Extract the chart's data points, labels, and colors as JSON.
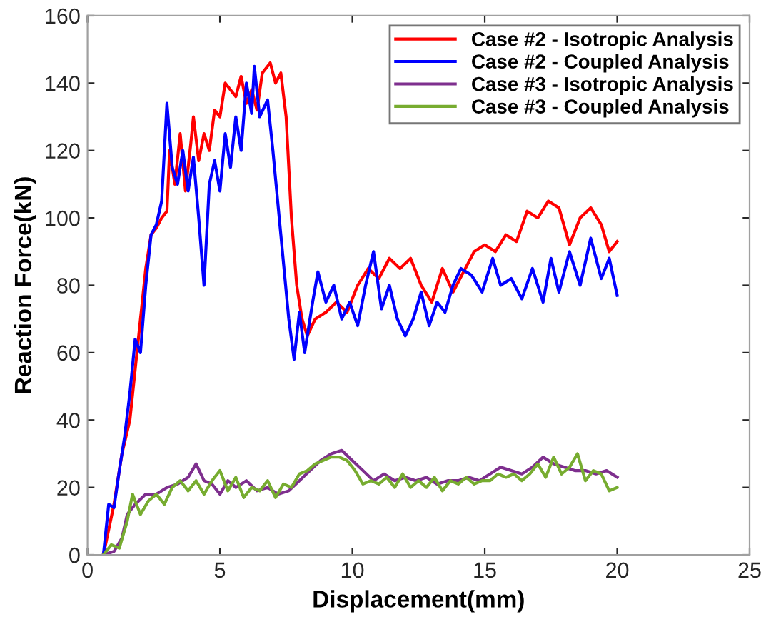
{
  "chart_data": {
    "type": "line",
    "xlabel": "Displacement(mm)",
    "ylabel": "Reaction Force(kN)",
    "xlim": [
      0,
      25
    ],
    "ylim": [
      0,
      160
    ],
    "xticks": [
      0,
      5,
      10,
      15,
      20,
      25
    ],
    "yticks": [
      0,
      20,
      40,
      60,
      80,
      100,
      120,
      140,
      160
    ],
    "grid": false,
    "legend": "top right",
    "line_style": "solid",
    "marker": "none",
    "series": [
      {
        "name": "Case #2 - Isotropic Analysis",
        "color": "#ff0000",
        "x": [
          0.6,
          1.0,
          1.3,
          1.6,
          1.8,
          2.0,
          2.2,
          2.4,
          2.6,
          2.8,
          3.0,
          3.1,
          3.3,
          3.5,
          3.7,
          3.9,
          4.0,
          4.2,
          4.4,
          4.6,
          4.8,
          5.0,
          5.2,
          5.4,
          5.6,
          5.8,
          6.0,
          6.2,
          6.4,
          6.6,
          6.9,
          7.1,
          7.3,
          7.5,
          7.7,
          7.9,
          8.1,
          8.3,
          8.6,
          9.0,
          9.4,
          9.8,
          10.2,
          10.6,
          11.0,
          11.4,
          11.8,
          12.2,
          12.6,
          13.0,
          13.4,
          13.8,
          14.2,
          14.6,
          15.0,
          15.4,
          15.8,
          16.2,
          16.6,
          17.0,
          17.4,
          17.8,
          18.2,
          18.6,
          19.0,
          19.4,
          19.7,
          20.0
        ],
        "values": [
          0,
          15,
          30,
          40,
          55,
          70,
          85,
          95,
          97,
          100,
          102,
          120,
          110,
          125,
          108,
          122,
          130,
          117,
          125,
          120,
          132,
          130,
          140,
          138,
          136,
          142,
          134,
          138,
          132,
          143,
          146,
          140,
          143,
          130,
          100,
          80,
          70,
          65,
          70,
          72,
          75,
          72,
          80,
          85,
          82,
          88,
          85,
          88,
          80,
          75,
          85,
          78,
          84,
          90,
          92,
          90,
          95,
          93,
          102,
          100,
          105,
          103,
          92,
          100,
          103,
          98,
          90,
          93
        ]
      },
      {
        "name": "Case #2 - Coupled Analysis",
        "color": "#0000ff",
        "x": [
          0.6,
          0.8,
          1.0,
          1.2,
          1.4,
          1.6,
          1.8,
          2.0,
          2.2,
          2.4,
          2.6,
          2.8,
          3.0,
          3.2,
          3.4,
          3.6,
          3.8,
          4.0,
          4.2,
          4.4,
          4.6,
          4.8,
          5.0,
          5.2,
          5.4,
          5.6,
          5.8,
          6.0,
          6.2,
          6.3,
          6.5,
          6.8,
          7.0,
          7.3,
          7.6,
          7.8,
          8.0,
          8.2,
          8.5,
          8.7,
          9.0,
          9.3,
          9.6,
          9.9,
          10.2,
          10.5,
          10.8,
          11.1,
          11.4,
          11.7,
          12.0,
          12.3,
          12.6,
          12.9,
          13.2,
          13.5,
          13.8,
          14.1,
          14.5,
          14.9,
          15.3,
          15.6,
          16.0,
          16.4,
          16.8,
          17.2,
          17.5,
          17.8,
          18.2,
          18.6,
          19.0,
          19.4,
          19.7,
          20.0
        ],
        "values": [
          0,
          15,
          14,
          25,
          35,
          48,
          64,
          60,
          80,
          95,
          98,
          105,
          134,
          115,
          110,
          120,
          108,
          118,
          100,
          80,
          110,
          117,
          108,
          125,
          115,
          130,
          120,
          140,
          131,
          145,
          130,
          135,
          120,
          95,
          70,
          58,
          72,
          60,
          75,
          84,
          75,
          80,
          70,
          75,
          68,
          80,
          90,
          73,
          80,
          70,
          65,
          70,
          78,
          68,
          75,
          72,
          80,
          85,
          83,
          78,
          88,
          80,
          82,
          76,
          85,
          75,
          88,
          78,
          90,
          80,
          94,
          82,
          88,
          77
        ]
      },
      {
        "name": "Case #3 - Isotropic Analysis",
        "color": "#7e2f8e",
        "x": [
          0.6,
          1.0,
          1.3,
          1.5,
          1.8,
          2.2,
          2.6,
          3.0,
          3.4,
          3.8,
          4.1,
          4.4,
          4.7,
          5.0,
          5.3,
          5.6,
          6.0,
          6.4,
          6.8,
          7.2,
          7.6,
          8.0,
          8.4,
          8.8,
          9.2,
          9.6,
          10.0,
          10.4,
          10.8,
          11.2,
          11.6,
          12.0,
          12.4,
          12.8,
          13.2,
          13.6,
          14.0,
          14.4,
          14.8,
          15.2,
          15.6,
          16.0,
          16.4,
          16.8,
          17.2,
          17.6,
          18.0,
          18.4,
          18.8,
          19.2,
          19.6,
          20.0
        ],
        "values": [
          0,
          1,
          5,
          12,
          15,
          18,
          18,
          20,
          21,
          23,
          27,
          22,
          21,
          18,
          22,
          20,
          22,
          19,
          20,
          18,
          19,
          22,
          25,
          28,
          30,
          31,
          28,
          25,
          22,
          24,
          22,
          23,
          22,
          23,
          21,
          22,
          22,
          23,
          22,
          24,
          26,
          25,
          24,
          26,
          29,
          27,
          26,
          25,
          25,
          24,
          25,
          23
        ]
      },
      {
        "name": "Case #3 - Coupled Analysis",
        "color": "#77ac30",
        "x": [
          0.6,
          0.9,
          1.2,
          1.5,
          1.7,
          2.0,
          2.3,
          2.6,
          2.9,
          3.2,
          3.5,
          3.8,
          4.1,
          4.4,
          4.7,
          5.0,
          5.3,
          5.6,
          5.9,
          6.2,
          6.5,
          6.8,
          7.1,
          7.4,
          7.7,
          8.0,
          8.3,
          8.6,
          8.9,
          9.2,
          9.5,
          9.8,
          10.1,
          10.4,
          10.7,
          11.0,
          11.3,
          11.6,
          11.9,
          12.2,
          12.5,
          12.8,
          13.1,
          13.4,
          13.7,
          14.0,
          14.3,
          14.6,
          14.9,
          15.2,
          15.5,
          15.8,
          16.1,
          16.4,
          16.7,
          17.0,
          17.3,
          17.6,
          17.9,
          18.2,
          18.5,
          18.8,
          19.1,
          19.4,
          19.7,
          20.0
        ],
        "values": [
          0,
          3,
          2,
          10,
          18,
          12,
          16,
          18,
          15,
          20,
          22,
          19,
          22,
          18,
          22,
          25,
          19,
          23,
          17,
          20,
          19,
          22,
          17,
          21,
          20,
          24,
          25,
          27,
          28,
          29,
          29,
          28,
          25,
          21,
          22,
          21,
          23,
          20,
          24,
          20,
          22,
          20,
          23,
          19,
          22,
          21,
          23,
          21,
          22,
          22,
          24,
          23,
          24,
          22,
          24,
          27,
          23,
          29,
          24,
          26,
          30,
          22,
          25,
          24,
          19,
          20
        ]
      }
    ]
  }
}
